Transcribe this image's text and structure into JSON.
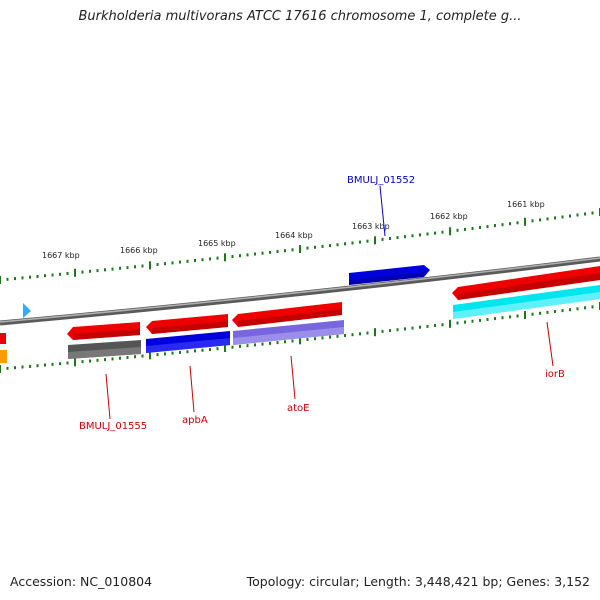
{
  "title": "Burkholderia multivorans ATCC 17616 chromosome 1, complete g...",
  "footer": {
    "accession": "Accession: NC_010804",
    "topology": "Topology: circular; Length: 3,448,421 bp; Genes: 3,152"
  },
  "kbp_labels": [
    "1667 kbp",
    "1666 kbp",
    "1665 kbp",
    "1664 kbp",
    "1663 kbp",
    "1662 kbp",
    "1661 kbp"
  ],
  "gene_labels": [
    {
      "text": "BMULJ_01552",
      "color": "#0000cc"
    },
    {
      "text": "BMULJ_01555",
      "color": "#cc0000"
    },
    {
      "text": "apbA",
      "color": "#cc0000"
    },
    {
      "text": "atoE",
      "color": "#cc0000"
    },
    {
      "text": "iorB",
      "color": "#cc0000"
    }
  ],
  "colors": {
    "backbone": "#808080",
    "forward_gene": "#ee0000",
    "reverse_blue": "#0000dd",
    "reverse_gray": "#555555",
    "reverse_purple": "#7766dd",
    "reverse_cyan": "#00e5ee",
    "tick": "#1a7a1a",
    "orange": "#ff9900",
    "light_blue": "#33aaff"
  }
}
